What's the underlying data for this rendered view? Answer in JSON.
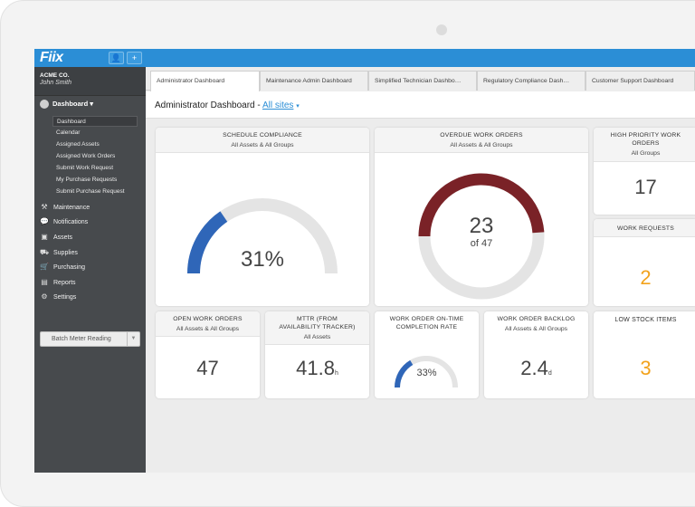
{
  "app": {
    "logo": "Fiix"
  },
  "topbar": {
    "user_btn": "👤",
    "add_btn": "+"
  },
  "account": {
    "company": "ACME CO.",
    "user": "John Smith"
  },
  "sidebar": {
    "section": "Dashboard ▾",
    "sub_items": [
      "Dashboard",
      "Calendar",
      "Assigned Assets",
      "Assigned Work Orders",
      "Submit Work Request",
      "My Purchase Requests",
      "Submit Purchase Request"
    ],
    "main_items": [
      {
        "label": "Maintenance",
        "icon": "wrench-icon",
        "glyph": "⚒"
      },
      {
        "label": "Notifications",
        "icon": "chat-icon",
        "glyph": "💬"
      },
      {
        "label": "Assets",
        "icon": "cube-icon",
        "glyph": "▣"
      },
      {
        "label": "Supplies",
        "icon": "truck-icon",
        "glyph": "⛟"
      },
      {
        "label": "Purchasing",
        "icon": "cart-icon",
        "glyph": "🛒"
      },
      {
        "label": "Reports",
        "icon": "chart-icon",
        "glyph": "▤"
      },
      {
        "label": "Settings",
        "icon": "gear-icon",
        "glyph": "⚙"
      }
    ],
    "batch_button": "Batch Meter Reading",
    "batch_dropdown": "▼"
  },
  "tabs": [
    "Administrator Dashboard",
    "Maintenance Admin Dashboard",
    "Simplified Technician Dashbo…",
    "Regulatory Compliance Dash…",
    "Customer Support Dashboard"
  ],
  "header": {
    "title": "Administrator Dashboard -",
    "site_link": "All sites",
    "site_caret": "▾"
  },
  "cards": {
    "schedule": {
      "title": "SCHEDULE COMPLIANCE",
      "sub": "All Assets & All Groups",
      "value": "31%",
      "percent": 31
    },
    "overdue": {
      "title": "OVERDUE WORK ORDERS",
      "sub": "All Assets & All Groups",
      "value": "23",
      "of": "of 47",
      "count": 23,
      "total": 47
    },
    "high_priority": {
      "title1": "HIGH PRIORITY WORK",
      "title2": "ORDERS",
      "sub": "All Groups",
      "value": "17"
    },
    "work_requests": {
      "title": "WORK REQUESTS",
      "value": "2"
    },
    "open_wo": {
      "title": "OPEN WORK ORDERS",
      "sub": "All Assets & All Groups",
      "value": "47"
    },
    "mttr": {
      "title1": "MTTR (FROM",
      "title2": "AVAILABILITY TRACKER)",
      "sub": "All Assets",
      "value": "41.8",
      "unit": "h"
    },
    "ontime": {
      "title1": "WORK ORDER ON-TIME",
      "title2": "COMPLETION RATE",
      "value": "33%",
      "percent": 33
    },
    "backlog": {
      "title": "WORK ORDER BACKLOG",
      "sub": "All Assets & All Groups",
      "value": "2.4",
      "unit": "d"
    },
    "low_stock": {
      "title": "LOW STOCK ITEMS",
      "value": "3"
    }
  },
  "colors": {
    "brand": "#2b8ed6",
    "gauge_blue": "#2f66b8",
    "overdue_red": "#7a2227",
    "track": "#e4e4e4",
    "highlight": "#f2a21c"
  }
}
